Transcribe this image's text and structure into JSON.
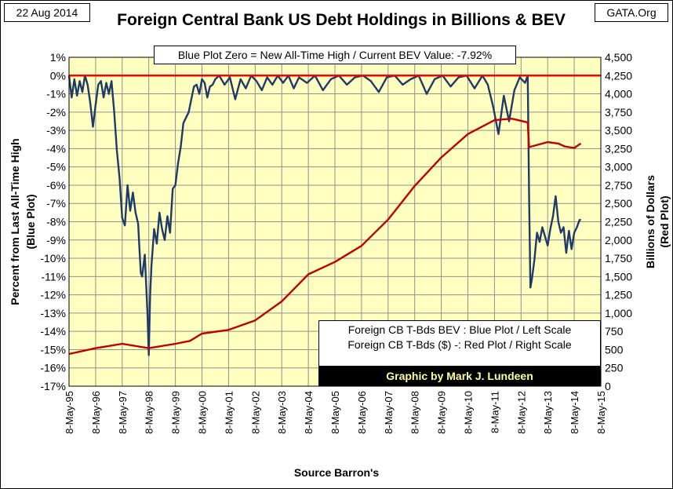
{
  "header": {
    "date": "22 Aug 2014",
    "source_site": "GATA.Org",
    "title": "Foreign Central Bank US Debt Holdings in Billions & BEV"
  },
  "annotations": {
    "note": "Blue Plot Zero = New All-Time High / Current BEV Value: -7.92%",
    "legend_line1": "Foreign CB T-Bds BEV : Blue Plot / Left Scale",
    "legend_line2": "Foreign CB T-Bds ($)   -: Red Plot / Right Scale",
    "credit": "Graphic by Mark J. Lundeen",
    "x_title": "Source Barron's"
  },
  "colors": {
    "plot_background": "#ffffc0",
    "grid": "#909090",
    "blue_series": "#1f3a68",
    "red_series": "#c00000",
    "zero_line": "#ff0000",
    "credit_text": "#ffff99"
  },
  "chart_data": {
    "type": "line",
    "x_tick_labels": [
      "8-May-95",
      "8-May-96",
      "8-May-97",
      "8-May-98",
      "8-May-99",
      "8-May-00",
      "8-May-01",
      "8-May-02",
      "8-May-03",
      "8-May-04",
      "8-May-05",
      "8-May-06",
      "8-May-07",
      "8-May-08",
      "8-May-09",
      "8-May-10",
      "8-May-11",
      "8-May-12",
      "8-May-13",
      "8-May-14",
      "8-May-15"
    ],
    "x_range": [
      1995.35,
      2015.35
    ],
    "y_left": {
      "label_left": "Percent from Last All-Time High",
      "label_right": "(Blue Plot)",
      "range": [
        -17,
        1
      ],
      "tick_labels": [
        "1%",
        "0%",
        "-1%",
        "-2%",
        "-3%",
        "-4%",
        "-5%",
        "-6%",
        "-7%",
        "-8%",
        "-9%",
        "-10%",
        "-11%",
        "-12%",
        "-13%",
        "-14%",
        "-15%",
        "-16%",
        "-17%"
      ]
    },
    "y_right": {
      "label_left": "Billions of Dollars",
      "label_right": "(Red Plot)",
      "range": [
        0,
        4500
      ],
      "tick_labels": [
        "4,500",
        "4,250",
        "4,000",
        "3,750",
        "3,500",
        "3,250",
        "3,000",
        "2,750",
        "2,500",
        "2,250",
        "2,000",
        "1,750",
        "1,500",
        "1,250",
        "1,000",
        "750",
        "500",
        "250",
        "0"
      ]
    },
    "grid": true,
    "series": [
      {
        "name": "Foreign CB T-Bds BEV",
        "axis": "left",
        "color": "#1f3a68",
        "x": [
          1995.35,
          1995.45,
          1995.55,
          1995.65,
          1995.75,
          1995.85,
          1995.95,
          1996.05,
          1996.15,
          1996.25,
          1996.35,
          1996.45,
          1996.55,
          1996.65,
          1996.75,
          1996.85,
          1996.95,
          1997.05,
          1997.15,
          1997.25,
          1997.35,
          1997.45,
          1997.55,
          1997.65,
          1997.75,
          1997.85,
          1997.95,
          1998.0,
          1998.05,
          1998.1,
          1998.2,
          1998.3,
          1998.35,
          1998.4,
          1998.45,
          1998.55,
          1998.65,
          1998.75,
          1998.85,
          1998.95,
          1999.05,
          1999.15,
          1999.25,
          1999.35,
          1999.45,
          1999.55,
          1999.65,
          1999.75,
          1999.85,
          1999.95,
          2000.05,
          2000.15,
          2000.25,
          2000.35,
          2000.45,
          2000.55,
          2000.65,
          2000.75,
          2000.85,
          2001.0,
          2001.2,
          2001.4,
          2001.6,
          2001.8,
          2002.0,
          2002.2,
          2002.4,
          2002.6,
          2002.8,
          2003.0,
          2003.2,
          2003.4,
          2003.6,
          2003.8,
          2004.0,
          2004.3,
          2004.6,
          2004.9,
          2005.2,
          2005.5,
          2005.8,
          2006.1,
          2006.4,
          2006.7,
          2007.0,
          2007.3,
          2007.6,
          2007.9,
          2008.2,
          2008.5,
          2008.8,
          2009.1,
          2009.4,
          2009.7,
          2010.0,
          2010.3,
          2010.6,
          2010.9,
          2011.1,
          2011.3,
          2011.5,
          2011.7,
          2011.9,
          2012.1,
          2012.3,
          2012.5,
          2012.6,
          2012.65,
          2012.7,
          2012.75,
          2012.85,
          2012.95,
          2013.05,
          2013.15,
          2013.25,
          2013.35,
          2013.45,
          2013.55,
          2013.65,
          2013.75,
          2013.85,
          2013.95,
          2014.05,
          2014.15,
          2014.25,
          2014.35,
          2014.45,
          2014.55,
          2014.6
        ],
        "y": [
          0,
          -1.2,
          -0.2,
          -1.1,
          -0.3,
          -0.9,
          0,
          -0.5,
          -1.5,
          -2.8,
          -1.6,
          -0.5,
          -0.3,
          -1.2,
          -0.4,
          -1.0,
          -0.3,
          -2.0,
          -4.1,
          -5.6,
          -7.8,
          -8.2,
          -6.0,
          -7.4,
          -6.4,
          -7.5,
          -8.1,
          -9.5,
          -10.8,
          -11.0,
          -9.8,
          -13.0,
          -15.3,
          -12.0,
          -10.4,
          -8.4,
          -9.2,
          -7.5,
          -8.4,
          -9.0,
          -7.7,
          -8.6,
          -6.2,
          -6.0,
          -4.8,
          -3.9,
          -2.6,
          -2.3,
          -2.0,
          -1.3,
          -0.6,
          -0.5,
          -1.0,
          -0.2,
          -0.4,
          -1.2,
          -0.6,
          -0.5,
          -0.2,
          0,
          -0.5,
          -0.1,
          -1.3,
          -0.2,
          -0.7,
          0,
          -0.3,
          -0.8,
          -0.1,
          -0.5,
          0,
          -0.4,
          0,
          -0.7,
          -0.1,
          -0.4,
          0,
          -0.8,
          -0.2,
          0,
          -0.5,
          -0.1,
          0,
          -0.3,
          -0.9,
          -0.1,
          0,
          -0.5,
          -0.2,
          0,
          -1.0,
          -0.2,
          0,
          -0.6,
          -0.1,
          0,
          -0.7,
          0,
          -0.5,
          -1.7,
          -3.2,
          -1.1,
          -2.5,
          -0.8,
          -0.1,
          -0.4,
          0,
          -6.5,
          -11.6,
          -11.2,
          -10.1,
          -8.6,
          -9.1,
          -8.3,
          -8.8,
          -9.3,
          -8.4,
          -7.7,
          -6.6,
          -8.0,
          -8.6,
          -8.3,
          -9.7,
          -8.5,
          -9.5,
          -8.6,
          -8.3,
          -7.9,
          -7.9
        ]
      },
      {
        "name": "Foreign CB T-Bds ($)",
        "axis": "right",
        "color": "#c00000",
        "x": [
          1995.35,
          1996.35,
          1997.35,
          1998.35,
          1999.35,
          1999.9,
          2000.35,
          2001.35,
          2002.35,
          2003.35,
          2004.35,
          2005.35,
          2006.35,
          2007.35,
          2008.35,
          2009.35,
          2010.35,
          2011.35,
          2012.0,
          2012.6,
          2012.65,
          2013.35,
          2013.75,
          2014.0,
          2014.35,
          2014.55,
          2014.6
        ],
        "y": [
          440,
          520,
          580,
          520,
          580,
          620,
          720,
          770,
          900,
          1160,
          1530,
          1700,
          1920,
          2280,
          2740,
          3130,
          3450,
          3640,
          3660,
          3610,
          3270,
          3340,
          3320,
          3280,
          3260,
          3310,
          3320
        ]
      }
    ],
    "reference_line": {
      "axis": "left",
      "y": 0,
      "color": "#ff0000"
    }
  }
}
